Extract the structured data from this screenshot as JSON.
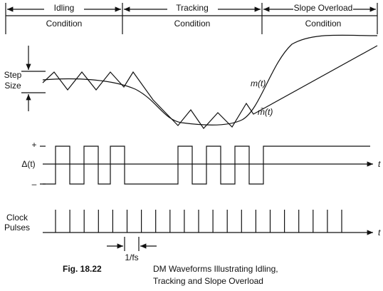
{
  "regions": [
    {
      "name": "Idling",
      "label": "Condition"
    },
    {
      "name": "Tracking",
      "label": "Condition"
    },
    {
      "name": "Slope Overload",
      "label": "Condition"
    }
  ],
  "waveform": {
    "step_label": [
      "Step",
      "Size"
    ],
    "signal_label": "m(t)",
    "approx_label": "m̄(t)"
  },
  "error_signal": {
    "plus": "+",
    "label": "Δ(t)",
    "minus": "–",
    "axis": "t"
  },
  "clock": {
    "label": [
      "Clock",
      "Pulses"
    ],
    "axis": "t",
    "period": "1/fs"
  },
  "caption": {
    "number": "Fig. 18.22",
    "lines": [
      "DM Waveforms Illustrating Idling,",
      "Tracking and Slope Overload"
    ]
  }
}
